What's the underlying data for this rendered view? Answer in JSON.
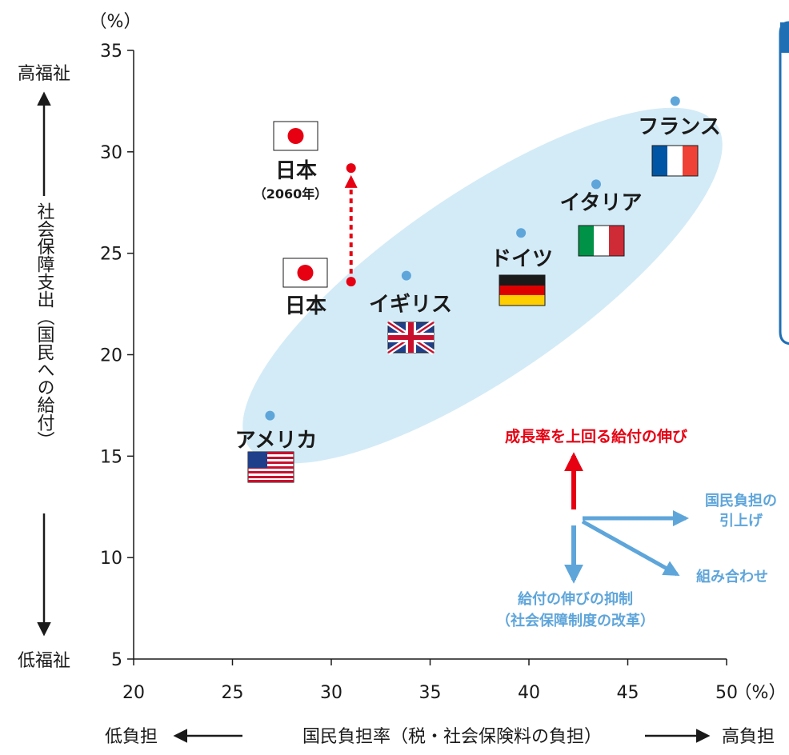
{
  "colors": {
    "ellipse": "#d3ebf7",
    "point": "#5ea5da",
    "japan_red": "#e60012",
    "arrow_blue": "#5ea5da",
    "axis": "#1a1a1a",
    "panel_blue": "#1f6fb5"
  },
  "chart_data": {
    "type": "scatter",
    "x_unit": "（%）",
    "y_unit": "（%）",
    "xlim": [
      20,
      50
    ],
    "ylim": [
      5,
      35
    ],
    "x_ticks": [
      "20",
      "25",
      "30",
      "35",
      "40",
      "45",
      "50"
    ],
    "y_ticks": [
      "5",
      "10",
      "15",
      "20",
      "25",
      "30",
      "35"
    ],
    "xlabel": {
      "left": "低負担",
      "center": "国民負担率（税・社会保険料の負担）",
      "right": "高負担"
    },
    "ylabel": {
      "top": "高福祉",
      "center": "社会保障支出（国民への給付）",
      "bottom": "低福祉"
    },
    "points": [
      {
        "label": "アメリカ",
        "x": 26.9,
        "y": 17.0,
        "flag": "us-flag-icon"
      },
      {
        "label": "イギリス",
        "x": 33.8,
        "y": 23.9,
        "flag": "uk-flag-icon"
      },
      {
        "label": "ドイツ",
        "x": 39.6,
        "y": 26.0,
        "flag": "germany-flag-icon"
      },
      {
        "label": "イタリア",
        "x": 43.4,
        "y": 28.4,
        "flag": "italy-flag-icon"
      },
      {
        "label": "フランス",
        "x": 47.4,
        "y": 32.5,
        "flag": "france-flag-icon"
      },
      {
        "label": "日本",
        "x": 31.0,
        "y": 23.6,
        "flag": "japan-flag-icon"
      },
      {
        "label": "日本",
        "sublabel": "（2060年）",
        "x": 31.0,
        "y": 29.2,
        "flag": "japan-flag-icon"
      }
    ],
    "annotations": {
      "growth": "成長率を上回る給付の伸び",
      "burden_up": [
        "国民負担の",
        "引上げ"
      ],
      "combination": "組み合わせ",
      "restraint": [
        "給付の伸びの抑制",
        "（社会保障制度の改革）"
      ]
    }
  }
}
